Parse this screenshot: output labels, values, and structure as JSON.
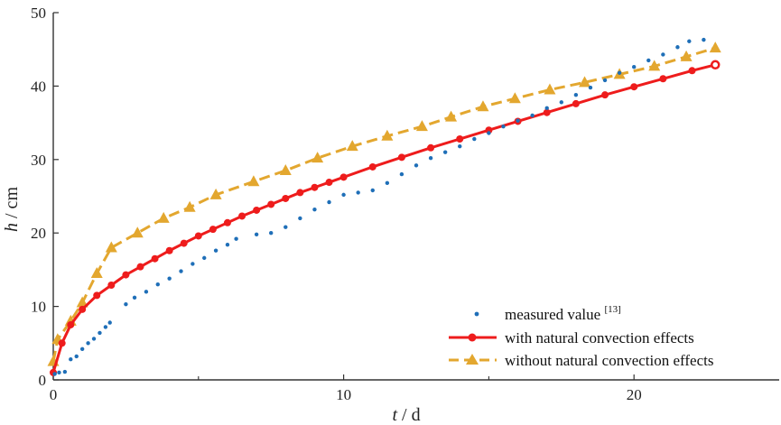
{
  "chart_data": {
    "type": "scatter",
    "xlabel": {
      "var": "t",
      "unit": "d"
    },
    "ylabel": {
      "var": "h",
      "unit": "cm"
    },
    "xlim": [
      0,
      25
    ],
    "ylim": [
      0,
      50
    ],
    "x_ticks": [
      0,
      10,
      20
    ],
    "x_minor_ticks": [
      5,
      15
    ],
    "y_ticks": [
      0,
      10,
      20,
      30,
      40,
      50
    ],
    "grid": false,
    "legend_position": "bottom-right",
    "colors": {
      "measured": "#1f6fb8",
      "with": "#ee1c1c",
      "without": "#e3a72f",
      "axis": "#333333"
    },
    "series": [
      {
        "name": "measured value",
        "name_ref": "[13]",
        "style": "dots",
        "points": [
          [
            0.05,
            0.8
          ],
          [
            0.2,
            1.0
          ],
          [
            0.4,
            1.1
          ],
          [
            0.6,
            2.8
          ],
          [
            0.8,
            3.2
          ],
          [
            1.0,
            4.2
          ],
          [
            1.2,
            5.0
          ],
          [
            1.4,
            5.6
          ],
          [
            1.6,
            6.4
          ],
          [
            1.8,
            7.2
          ],
          [
            1.95,
            7.8
          ],
          [
            2.5,
            10.3
          ],
          [
            2.8,
            11.2
          ],
          [
            3.2,
            12.0
          ],
          [
            3.6,
            13.0
          ],
          [
            4.0,
            13.8
          ],
          [
            4.4,
            14.8
          ],
          [
            4.8,
            15.8
          ],
          [
            5.2,
            16.6
          ],
          [
            5.6,
            17.6
          ],
          [
            6.0,
            18.4
          ],
          [
            6.3,
            19.2
          ],
          [
            7.0,
            19.8
          ],
          [
            7.5,
            20.0
          ],
          [
            8.0,
            20.8
          ],
          [
            8.5,
            22.0
          ],
          [
            9.0,
            23.2
          ],
          [
            9.5,
            24.2
          ],
          [
            10.0,
            25.2
          ],
          [
            10.5,
            25.5
          ],
          [
            11.0,
            25.8
          ],
          [
            11.5,
            26.8
          ],
          [
            12.0,
            28.0
          ],
          [
            12.5,
            29.2
          ],
          [
            13.0,
            30.2
          ],
          [
            13.5,
            31.0
          ],
          [
            14.0,
            31.8
          ],
          [
            14.5,
            32.8
          ],
          [
            15.0,
            33.6
          ],
          [
            15.5,
            34.5
          ],
          [
            16.0,
            35.3
          ],
          [
            16.5,
            36.0
          ],
          [
            17.0,
            37.0
          ],
          [
            17.5,
            37.8
          ],
          [
            18.0,
            38.8
          ],
          [
            18.5,
            39.8
          ],
          [
            19.0,
            40.8
          ],
          [
            19.5,
            41.8
          ],
          [
            20.0,
            42.6
          ],
          [
            20.5,
            43.5
          ],
          [
            21.0,
            44.3
          ],
          [
            21.5,
            45.3
          ],
          [
            21.9,
            46.1
          ],
          [
            22.4,
            46.3
          ]
        ]
      },
      {
        "name": "with natural convection effects",
        "style": "solid-circles",
        "points": [
          [
            0,
            1.0
          ],
          [
            0.3,
            5.0
          ],
          [
            0.6,
            7.5
          ],
          [
            1.0,
            9.6
          ],
          [
            1.5,
            11.5
          ],
          [
            2.0,
            12.9
          ],
          [
            2.5,
            14.3
          ],
          [
            3.0,
            15.4
          ],
          [
            3.5,
            16.5
          ],
          [
            4.0,
            17.6
          ],
          [
            4.5,
            18.6
          ],
          [
            5.0,
            19.6
          ],
          [
            5.5,
            20.5
          ],
          [
            6.0,
            21.4
          ],
          [
            6.5,
            22.3
          ],
          [
            7.0,
            23.1
          ],
          [
            7.5,
            23.9
          ],
          [
            8.0,
            24.7
          ],
          [
            8.5,
            25.5
          ],
          [
            9.0,
            26.2
          ],
          [
            9.5,
            26.9
          ],
          [
            10.0,
            27.6
          ],
          [
            11.0,
            29.0
          ],
          [
            12.0,
            30.3
          ],
          [
            13.0,
            31.6
          ],
          [
            14.0,
            32.8
          ],
          [
            15.0,
            34.0
          ],
          [
            16.0,
            35.2
          ],
          [
            17.0,
            36.4
          ],
          [
            18.0,
            37.6
          ],
          [
            19.0,
            38.8
          ],
          [
            20.0,
            39.9
          ],
          [
            21.0,
            41.0
          ],
          [
            22.0,
            42.1
          ],
          [
            22.8,
            42.9
          ]
        ]
      },
      {
        "name": "without natural convection effects",
        "style": "dashed-triangles",
        "points": [
          [
            0,
            2.5
          ],
          [
            0.15,
            5.5
          ],
          [
            0.6,
            8.0
          ],
          [
            1.0,
            10.5
          ],
          [
            1.5,
            14.5
          ],
          [
            2.0,
            18.0
          ],
          [
            2.9,
            20.0
          ],
          [
            3.8,
            22.0
          ],
          [
            4.7,
            23.5
          ],
          [
            5.6,
            25.2
          ],
          [
            6.9,
            27.0
          ],
          [
            8.0,
            28.5
          ],
          [
            9.1,
            30.2
          ],
          [
            10.3,
            31.8
          ],
          [
            11.5,
            33.2
          ],
          [
            12.7,
            34.5
          ],
          [
            13.7,
            35.8
          ],
          [
            14.8,
            37.2
          ],
          [
            15.9,
            38.3
          ],
          [
            17.1,
            39.5
          ],
          [
            18.3,
            40.5
          ],
          [
            19.5,
            41.6
          ],
          [
            20.7,
            42.7
          ],
          [
            21.8,
            44.0
          ],
          [
            22.8,
            45.2
          ]
        ]
      }
    ]
  }
}
